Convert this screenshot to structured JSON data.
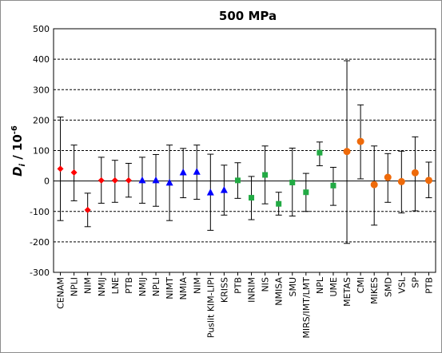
{
  "chart_data": {
    "type": "scatter",
    "title": "500 MPa",
    "ylabel_main": "D",
    "ylabel_sub": "i",
    "ylabel_rest": " / 10",
    "ylabel_exp": "-6",
    "xlabel": "",
    "ylim": [
      -300,
      500
    ],
    "yticks": [
      -300,
      -200,
      -100,
      0,
      100,
      200,
      300,
      400,
      500
    ],
    "grid": "horizontal dashed",
    "categories": [
      "CENAM",
      "NPLI",
      "NIM",
      "NMIJ",
      "LNE",
      "PTB",
      "NMIJ",
      "NPLI",
      "NIMT",
      "NMIA",
      "NIM",
      "Puslit KIM-LIPI",
      "KRISS",
      "PTB",
      "INRIM",
      "NIS",
      "NMISA",
      "SMU",
      "MIRS/IMT/LMT",
      "NPL",
      "UME",
      "METAS",
      "CMI",
      "MIKES",
      "SMD",
      "VSL",
      "SP",
      "PTB"
    ],
    "series": [
      {
        "marker": "diamond",
        "color": "#ff0000",
        "points": [
          {
            "i": 0,
            "y": 40,
            "lo": -130,
            "hi": 210
          },
          {
            "i": 1,
            "y": 28,
            "lo": -65,
            "hi": 118
          },
          {
            "i": 2,
            "y": -95,
            "lo": -150,
            "hi": -40
          },
          {
            "i": 3,
            "y": 2,
            "lo": -73,
            "hi": 78
          },
          {
            "i": 4,
            "y": 2,
            "lo": -70,
            "hi": 68
          },
          {
            "i": 5,
            "y": 2,
            "lo": -53,
            "hi": 58
          }
        ]
      },
      {
        "marker": "triangle",
        "color": "#0000ff",
        "points": [
          {
            "i": 6,
            "y": 2,
            "lo": -73,
            "hi": 78
          },
          {
            "i": 7,
            "y": 2,
            "lo": -83,
            "hi": 87
          },
          {
            "i": 8,
            "y": -6,
            "lo": -130,
            "hi": 118
          },
          {
            "i": 9,
            "y": 28,
            "lo": -55,
            "hi": 107
          },
          {
            "i": 10,
            "y": 30,
            "lo": -60,
            "hi": 118
          },
          {
            "i": 11,
            "y": -38,
            "lo": -162,
            "hi": 88
          },
          {
            "i": 12,
            "y": -30,
            "lo": -112,
            "hi": 52
          }
        ]
      },
      {
        "marker": "square",
        "color": "#22aa44",
        "points": [
          {
            "i": 13,
            "y": 2,
            "lo": -57,
            "hi": 60
          },
          {
            "i": 14,
            "y": -55,
            "lo": -127,
            "hi": 15
          },
          {
            "i": 15,
            "y": 20,
            "lo": -75,
            "hi": 115
          },
          {
            "i": 16,
            "y": -75,
            "lo": -112,
            "hi": -37
          },
          {
            "i": 17,
            "y": -5,
            "lo": -115,
            "hi": 108
          },
          {
            "i": 18,
            "y": -37,
            "lo": -100,
            "hi": 25
          },
          {
            "i": 19,
            "y": 93,
            "lo": 50,
            "hi": 128
          },
          {
            "i": 20,
            "y": -15,
            "lo": -80,
            "hi": 45
          }
        ]
      },
      {
        "marker": "circle",
        "color": "#ee6a0a",
        "points": [
          {
            "i": 21,
            "y": 97,
            "lo": -205,
            "hi": 395
          },
          {
            "i": 22,
            "y": 130,
            "lo": 7,
            "hi": 250
          },
          {
            "i": 23,
            "y": -12,
            "lo": -145,
            "hi": 115
          },
          {
            "i": 24,
            "y": 12,
            "lo": -70,
            "hi": 90
          },
          {
            "i": 25,
            "y": -2,
            "lo": -105,
            "hi": 98
          },
          {
            "i": 26,
            "y": 27,
            "lo": -98,
            "hi": 145
          },
          {
            "i": 27,
            "y": 2,
            "lo": -55,
            "hi": 62
          }
        ]
      }
    ]
  }
}
